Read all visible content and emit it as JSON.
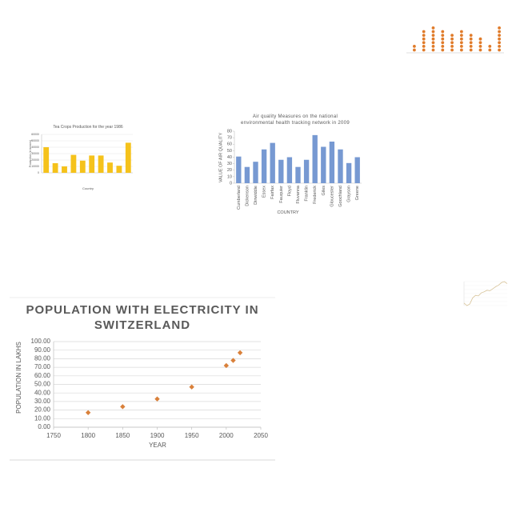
{
  "chart_data": [
    {
      "type": "dot",
      "color": "#e07b2a",
      "categories": [
        null,
        null,
        null,
        null,
        null,
        null,
        null,
        null,
        null,
        null
      ],
      "values": [
        2,
        6,
        7,
        6,
        5,
        6,
        5,
        4,
        2,
        7
      ]
    },
    {
      "type": "bar",
      "title": "Tea Crops  Production for the year 1986",
      "x_label": "Country",
      "y_label": "Production (in tonnes)",
      "color": "#f5c21b",
      "categories": [
        null,
        null,
        null,
        null,
        null,
        null,
        null,
        null,
        null,
        null
      ],
      "values": [
        40000,
        15000,
        10000,
        28000,
        19000,
        27000,
        27000,
        16000,
        11000,
        47000
      ],
      "ylim": [
        0,
        60000
      ],
      "yticks": [
        0,
        10000,
        20000,
        30000,
        40000,
        50000,
        60000
      ],
      "grid": true
    },
    {
      "type": "bar",
      "title": "Air quality Measures on the national environmental health tracking network in 2009",
      "x_label": "COUNTRY",
      "y_label": "VALUE  OF  AIR QUALITY",
      "color": "#7799d2",
      "categories": [
        "Cumberland",
        "Dickenson",
        "Dinwiddie",
        "Essex",
        "Fairfax",
        "Fauquier",
        "Floyd",
        "Fluvanna",
        "Franklin",
        "Frederick",
        "Giles",
        "Gloucester",
        "Goochland",
        "Grayson",
        "Greene"
      ],
      "values": [
        41,
        25,
        33,
        52,
        62,
        36,
        40,
        25,
        36,
        74,
        56,
        64,
        52,
        31,
        40
      ],
      "ylim": [
        0,
        80
      ],
      "yticks": [
        0,
        10,
        20,
        30,
        40,
        50,
        60,
        70,
        80
      ],
      "grid": false
    },
    {
      "type": "line",
      "color": "#d8c49a",
      "values": [
        30,
        25,
        28,
        40,
        45,
        44,
        50,
        52,
        55,
        54,
        58,
        62,
        65,
        70,
        72,
        68
      ]
    },
    {
      "type": "scatter",
      "title": "POPULATION WITH ELECTRICITY IN SWITZERLAND",
      "x_label": "YEAR",
      "y_label": "POPULATION IN LAKHS",
      "color": "#d9803a",
      "x": [
        1800,
        1850,
        1900,
        1950,
        2000,
        2010,
        2020
      ],
      "values": [
        17,
        24,
        33,
        47,
        72,
        78,
        87
      ],
      "xlim": [
        1750,
        2050
      ],
      "xticks": [
        1750,
        1800,
        1850,
        1900,
        1950,
        2000,
        2050
      ],
      "ylim": [
        0,
        100
      ],
      "yticks": [
        {
          "value": 0,
          "label": "0.00"
        },
        {
          "value": 10,
          "label": "10.00"
        },
        {
          "value": 20,
          "label": "20.00"
        },
        {
          "value": 30,
          "label": "30.00"
        },
        {
          "value": 40,
          "label": "40.00"
        },
        {
          "value": 50,
          "label": "50.00"
        },
        {
          "value": 60,
          "label": "60.00"
        },
        {
          "value": 70,
          "label": "70.00"
        },
        {
          "value": 80,
          "label": "80.00"
        },
        {
          "value": 90,
          "label": "90.00"
        },
        {
          "value": 100,
          "label": "100.00"
        }
      ],
      "grid": true
    }
  ]
}
